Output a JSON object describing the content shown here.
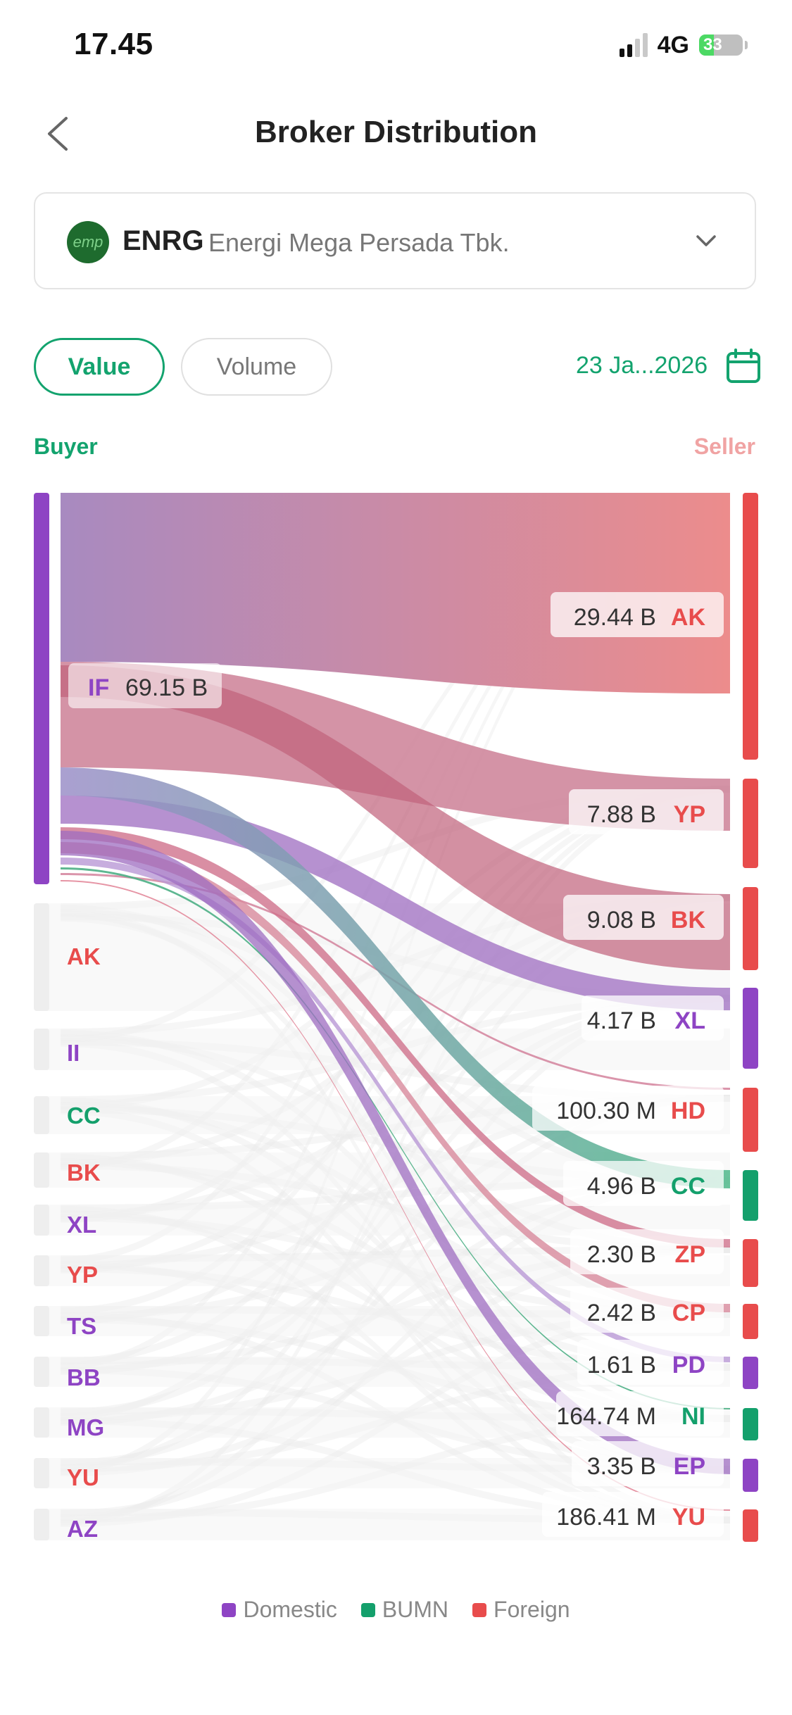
{
  "status": {
    "time": "17.45",
    "network": "4G",
    "battery": "33"
  },
  "header": {
    "title": "Broker Distribution"
  },
  "stock": {
    "logo_text": "emp",
    "code": "ENRG",
    "name": "Energi Mega Persada Tbk."
  },
  "tabs": {
    "value": "Value",
    "volume": "Volume"
  },
  "date_label": "23 Ja...2026",
  "columns": {
    "buyer": "Buyer",
    "seller": "Seller"
  },
  "colors": {
    "Domestic": "#8e44c4",
    "BUMN": "#14a06c",
    "Foreign": "#e84c4c"
  },
  "chart_data": {
    "type": "sankey",
    "selected_buyer": {
      "code": "IF",
      "value": "69.15 B",
      "category": "Domestic"
    },
    "buyers": [
      {
        "code": "IF",
        "category": "Domestic"
      },
      {
        "code": "AK",
        "category": "Foreign"
      },
      {
        "code": "II",
        "category": "Domestic"
      },
      {
        "code": "CC",
        "category": "BUMN"
      },
      {
        "code": "BK",
        "category": "Foreign"
      },
      {
        "code": "XL",
        "category": "Domestic"
      },
      {
        "code": "YP",
        "category": "Foreign"
      },
      {
        "code": "TS",
        "category": "Domestic"
      },
      {
        "code": "BB",
        "category": "Domestic"
      },
      {
        "code": "MG",
        "category": "Domestic"
      },
      {
        "code": "YU",
        "category": "Foreign"
      },
      {
        "code": "AZ",
        "category": "Domestic"
      }
    ],
    "sellers": [
      {
        "code": "AK",
        "value": "29.44 B",
        "category": "Foreign",
        "flow_b": 29.44
      },
      {
        "code": "YP",
        "value": "7.88 B",
        "category": "Foreign",
        "flow_b": 7.88
      },
      {
        "code": "BK",
        "value": "9.08 B",
        "category": "Foreign",
        "flow_b": 9.08
      },
      {
        "code": "XL",
        "value": "4.17 B",
        "category": "Domestic",
        "flow_b": 4.17
      },
      {
        "code": "HD",
        "value": "100.30 M",
        "category": "Foreign",
        "flow_b": 0.1003
      },
      {
        "code": "CC",
        "value": "4.96 B",
        "category": "BUMN",
        "flow_b": 4.96
      },
      {
        "code": "ZP",
        "value": "2.30 B",
        "category": "Foreign",
        "flow_b": 2.3
      },
      {
        "code": "CP",
        "value": "2.42 B",
        "category": "Foreign",
        "flow_b": 2.42
      },
      {
        "code": "PD",
        "value": "1.61 B",
        "category": "Domestic",
        "flow_b": 1.61
      },
      {
        "code": "NI",
        "value": "164.74 M",
        "category": "BUMN",
        "flow_b": 0.16474
      },
      {
        "code": "EP",
        "value": "3.35 B",
        "category": "Domestic",
        "flow_b": 3.35
      },
      {
        "code": "YU",
        "value": "186.41 M",
        "category": "Foreign",
        "flow_b": 0.18641
      }
    ],
    "legend": [
      "Domestic",
      "BUMN",
      "Foreign"
    ]
  }
}
